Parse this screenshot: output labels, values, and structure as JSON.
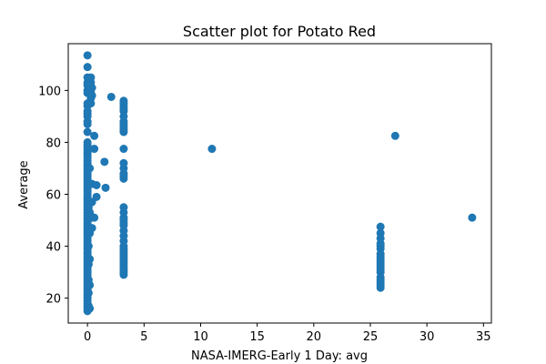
{
  "chart_data": {
    "type": "scatter",
    "title": "Scatter plot for Potato Red",
    "xlabel": "NASA-IMERG-Early 1 Day: avg",
    "ylabel": "Average",
    "xlim": [
      -1.7,
      35.7
    ],
    "ylim": [
      10.4,
      118
    ],
    "xticks": [
      0,
      5,
      10,
      15,
      20,
      25,
      30,
      35
    ],
    "yticks": [
      20,
      40,
      60,
      80,
      100
    ],
    "grid": false,
    "marker_color": "#1f77b4",
    "points": [
      [
        0,
        15
      ],
      [
        0,
        16
      ],
      [
        0,
        17
      ],
      [
        0,
        18
      ],
      [
        0,
        19
      ],
      [
        0,
        20
      ],
      [
        0,
        21
      ],
      [
        0,
        22
      ],
      [
        0,
        23
      ],
      [
        0,
        24
      ],
      [
        0,
        25
      ],
      [
        0,
        26
      ],
      [
        0,
        27
      ],
      [
        0,
        28
      ],
      [
        0,
        29
      ],
      [
        0,
        30
      ],
      [
        0,
        31
      ],
      [
        0,
        32
      ],
      [
        0,
        33
      ],
      [
        0,
        34
      ],
      [
        0,
        35
      ],
      [
        0,
        36
      ],
      [
        0,
        37
      ],
      [
        0,
        38
      ],
      [
        0,
        39
      ],
      [
        0,
        40
      ],
      [
        0,
        41
      ],
      [
        0,
        42
      ],
      [
        0,
        43
      ],
      [
        0,
        44
      ],
      [
        0,
        45
      ],
      [
        0,
        46
      ],
      [
        0,
        47
      ],
      [
        0,
        48
      ],
      [
        0,
        49
      ],
      [
        0,
        50
      ],
      [
        0,
        51
      ],
      [
        0,
        52
      ],
      [
        0,
        53
      ],
      [
        0,
        54
      ],
      [
        0,
        55
      ],
      [
        0,
        56
      ],
      [
        0,
        57
      ],
      [
        0,
        58
      ],
      [
        0,
        59
      ],
      [
        0,
        60
      ],
      [
        0,
        61
      ],
      [
        0,
        62
      ],
      [
        0,
        63
      ],
      [
        0,
        64
      ],
      [
        0,
        65
      ],
      [
        0,
        66
      ],
      [
        0,
        67
      ],
      [
        0,
        68
      ],
      [
        0,
        69
      ],
      [
        0,
        70
      ],
      [
        0,
        71
      ],
      [
        0,
        72
      ],
      [
        0,
        73
      ],
      [
        0,
        74
      ],
      [
        0,
        75
      ],
      [
        0,
        76
      ],
      [
        0,
        77
      ],
      [
        0,
        78
      ],
      [
        0,
        79
      ],
      [
        0,
        80
      ],
      [
        0,
        84
      ],
      [
        0,
        87
      ],
      [
        0,
        88
      ],
      [
        0,
        90
      ],
      [
        0,
        91
      ],
      [
        0,
        92
      ],
      [
        0,
        94
      ],
      [
        0,
        95
      ],
      [
        0,
        99
      ],
      [
        0,
        100
      ],
      [
        0,
        102
      ],
      [
        0,
        103
      ],
      [
        0,
        105
      ],
      [
        0,
        109
      ],
      [
        0,
        113.5
      ],
      [
        0.1,
        17
      ],
      [
        0.1,
        22
      ],
      [
        0.1,
        27
      ],
      [
        0.1,
        33
      ],
      [
        0.1,
        40
      ],
      [
        0.1,
        47
      ],
      [
        0.1,
        55
      ],
      [
        0.2,
        16
      ],
      [
        0.2,
        25
      ],
      [
        0.2,
        35
      ],
      [
        0.2,
        45
      ],
      [
        0.2,
        53
      ],
      [
        0.2,
        64
      ],
      [
        0.2,
        70
      ],
      [
        0.2,
        101
      ],
      [
        0.3,
        95
      ],
      [
        0.3,
        97
      ],
      [
        0.3,
        99
      ],
      [
        0.3,
        103
      ],
      [
        0.3,
        105
      ],
      [
        0.4,
        47
      ],
      [
        0.4,
        51
      ],
      [
        0.4,
        57
      ],
      [
        0.4,
        64
      ],
      [
        0.4,
        98
      ],
      [
        0.4,
        101
      ],
      [
        0.6,
        77.5
      ],
      [
        0.6,
        82.5
      ],
      [
        0.6,
        51
      ],
      [
        0.8,
        59
      ],
      [
        0.8,
        63.5
      ],
      [
        1.5,
        72.5
      ],
      [
        1.6,
        62.5
      ],
      [
        2.1,
        97.5
      ],
      [
        3.2,
        29
      ],
      [
        3.2,
        30
      ],
      [
        3.2,
        31
      ],
      [
        3.2,
        32
      ],
      [
        3.2,
        33
      ],
      [
        3.2,
        34
      ],
      [
        3.2,
        35
      ],
      [
        3.2,
        36
      ],
      [
        3.2,
        37
      ],
      [
        3.2,
        38
      ],
      [
        3.2,
        39
      ],
      [
        3.2,
        40
      ],
      [
        3.2,
        42
      ],
      [
        3.2,
        44
      ],
      [
        3.2,
        46
      ],
      [
        3.2,
        48
      ],
      [
        3.2,
        49
      ],
      [
        3.2,
        50
      ],
      [
        3.2,
        51
      ],
      [
        3.2,
        53
      ],
      [
        3.2,
        55
      ],
      [
        3.2,
        66
      ],
      [
        3.2,
        67
      ],
      [
        3.2,
        68
      ],
      [
        3.2,
        70
      ],
      [
        3.2,
        72
      ],
      [
        3.2,
        77.5
      ],
      [
        3.2,
        84
      ],
      [
        3.2,
        85
      ],
      [
        3.2,
        86
      ],
      [
        3.2,
        87
      ],
      [
        3.2,
        88
      ],
      [
        3.2,
        90
      ],
      [
        3.2,
        92
      ],
      [
        3.2,
        93
      ],
      [
        3.2,
        94
      ],
      [
        3.2,
        95
      ],
      [
        3.2,
        96
      ],
      [
        11,
        77.5
      ],
      [
        25.9,
        24
      ],
      [
        25.9,
        25
      ],
      [
        25.9,
        26
      ],
      [
        25.9,
        27
      ],
      [
        25.9,
        28
      ],
      [
        25.9,
        30
      ],
      [
        25.9,
        31
      ],
      [
        25.9,
        32
      ],
      [
        25.9,
        33
      ],
      [
        25.9,
        34
      ],
      [
        25.9,
        35
      ],
      [
        25.9,
        36
      ],
      [
        25.9,
        37
      ],
      [
        25.9,
        39
      ],
      [
        25.9,
        40
      ],
      [
        25.9,
        41
      ],
      [
        25.9,
        43
      ],
      [
        25.9,
        45
      ],
      [
        25.9,
        47.5
      ],
      [
        27.2,
        82.5
      ],
      [
        34,
        51
      ]
    ]
  }
}
